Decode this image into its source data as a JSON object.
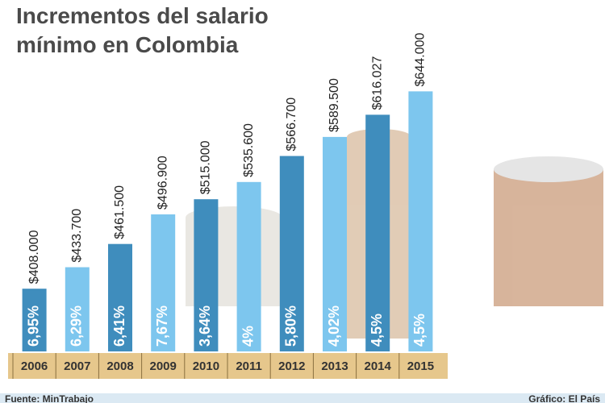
{
  "chart_data": {
    "type": "bar",
    "title": "Incrementos del salario mínimo en Colombia",
    "categories": [
      "2006",
      "2007",
      "2008",
      "2009",
      "2010",
      "2011",
      "2012",
      "2013",
      "2014",
      "2015"
    ],
    "values": [
      408000,
      433700,
      461500,
      496900,
      515000,
      535600,
      566700,
      589500,
      616027,
      644000
    ],
    "value_labels": [
      "$408.000",
      "$433.700",
      "$461.500",
      "$496.900",
      "$515.000",
      "$535.600",
      "$566.700",
      "$589.500",
      "$616.027",
      "$644.000"
    ],
    "increment_labels": [
      "6,95%",
      "6,29%",
      "6,41%",
      "7,67%",
      "3,64%",
      "4%",
      "5,80%",
      "4,02%",
      "4,5%",
      "4,5%"
    ],
    "colors": [
      "#3f8dbd",
      "#7dc6ee"
    ],
    "ylim": [
      333000,
      680000
    ],
    "source": "Fuente: MinTrabajo",
    "credit": "Gráfico: El País"
  }
}
